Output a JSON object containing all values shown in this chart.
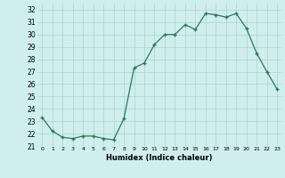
{
  "x": [
    0,
    1,
    2,
    3,
    4,
    5,
    6,
    7,
    8,
    9,
    10,
    11,
    12,
    13,
    14,
    15,
    16,
    17,
    18,
    19,
    20,
    21,
    22,
    23
  ],
  "y": [
    23.3,
    22.2,
    21.7,
    21.6,
    21.8,
    21.8,
    21.6,
    21.5,
    23.2,
    27.3,
    27.7,
    29.2,
    30.0,
    30.0,
    30.8,
    30.4,
    31.7,
    31.6,
    31.4,
    31.7,
    30.5,
    28.5,
    27.0,
    25.6
  ],
  "line_color": "#2a7a5a",
  "marker": "+",
  "bg_color": "#d0eeee",
  "grid_color": "#b0d0d0",
  "xlabel": "Humidex (Indice chaleur)",
  "ylim": [
    21,
    32.5
  ],
  "xlim": [
    -0.5,
    23.5
  ],
  "yticks": [
    21,
    22,
    23,
    24,
    25,
    26,
    27,
    28,
    29,
    30,
    31,
    32
  ],
  "xticks": [
    0,
    1,
    2,
    3,
    4,
    5,
    6,
    7,
    8,
    9,
    10,
    11,
    12,
    13,
    14,
    15,
    16,
    17,
    18,
    19,
    20,
    21,
    22,
    23
  ]
}
